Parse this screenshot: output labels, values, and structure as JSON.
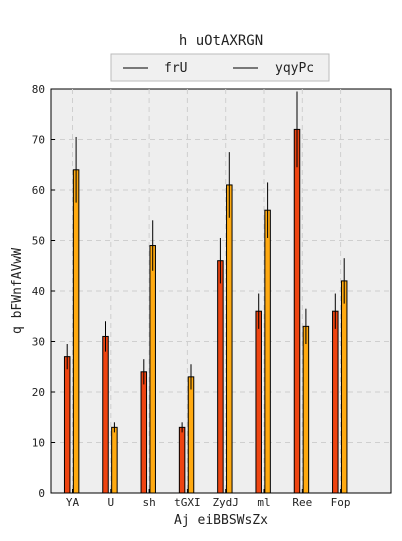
{
  "chart_data": {
    "type": "bar",
    "title": "h  uOtAXRGN",
    "xlabel": "Aj eiBBSWsZx",
    "ylabel": "q bFWnfAVwW",
    "categories": [
      "YA",
      "U",
      "sh",
      "tGXI",
      "ZydJ",
      "ml",
      "Ree",
      "Fop"
    ],
    "ylim": [
      0,
      80
    ],
    "yticks": [
      0,
      10,
      20,
      30,
      40,
      50,
      60,
      70,
      80
    ],
    "grid": true,
    "legend_position": "top-center",
    "series": [
      {
        "name": "frU",
        "color": "#ee4411",
        "values": [
          27,
          31,
          24,
          13,
          46,
          36,
          72,
          36
        ],
        "errors": [
          2.5,
          3,
          2.5,
          1,
          4.5,
          3.5,
          7.5,
          3.5
        ]
      },
      {
        "name": "yqyPc",
        "color": "#ffaa11",
        "values": [
          64,
          13,
          49,
          23,
          61,
          56,
          33,
          42
        ],
        "errors": [
          6.5,
          1,
          5,
          2.5,
          6.5,
          5.5,
          3.5,
          4.5
        ]
      }
    ]
  }
}
